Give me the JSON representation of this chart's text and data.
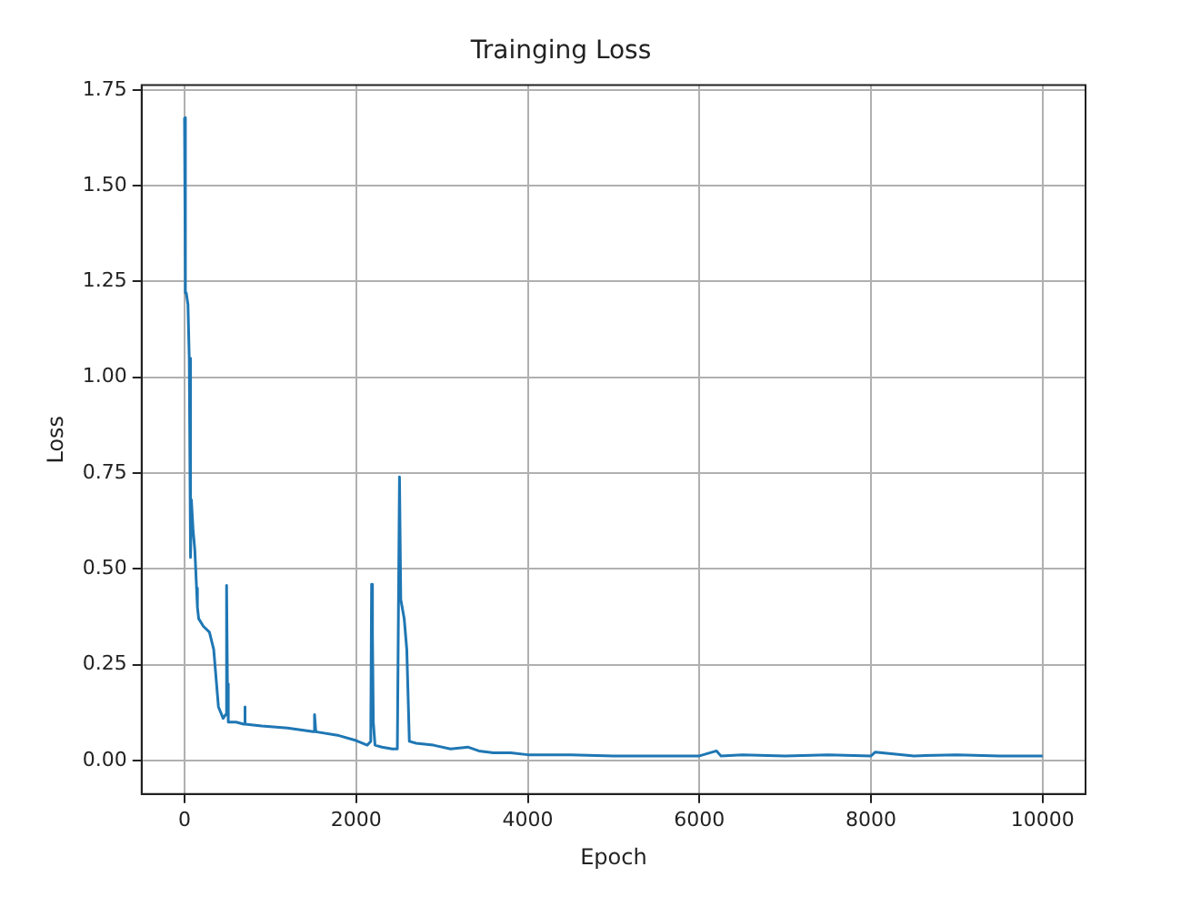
{
  "chart_data": {
    "type": "line",
    "title": "Trainging Loss",
    "xlabel": "Epoch",
    "ylabel": "Loss",
    "xlim": [
      -500,
      10500
    ],
    "xticks": [
      0,
      2000,
      4000,
      6000,
      8000,
      10000
    ],
    "ylim": [
      -0.0875,
      1.7625
    ],
    "yticks": [
      {
        "value": 0,
        "label": "0.00"
      },
      {
        "value": 0.25,
        "label": "0.25"
      },
      {
        "value": 0.5,
        "label": "0.50"
      },
      {
        "value": 0.75,
        "label": "0.75"
      },
      {
        "value": 1,
        "label": "1.00"
      },
      {
        "value": 1.25,
        "label": "1.25"
      },
      {
        "value": 1.5,
        "label": "1.50"
      },
      {
        "value": 1.75,
        "label": "1.75"
      }
    ],
    "grid": true,
    "legend": false,
    "marker": "none",
    "line_style": "solid",
    "series": [
      {
        "color": "#1f77b4",
        "x": [
          0,
          10,
          20,
          40,
          55,
          70,
          80,
          100,
          120,
          140,
          150,
          165,
          220,
          290,
          340,
          395,
          450,
          480,
          490,
          500,
          510,
          600,
          690,
          700,
          710,
          900,
          1200,
          1500,
          1515,
          1530,
          1800,
          2000,
          2130,
          2170,
          2180,
          2190,
          2200,
          2220,
          2300,
          2420,
          2480,
          2505,
          2520,
          2560,
          2590,
          2620,
          2700,
          2900,
          3100,
          3300,
          3430,
          3600,
          3800,
          4000,
          4500,
          5000,
          5500,
          6000,
          6200,
          6250,
          6500,
          7000,
          7500,
          8000,
          8050,
          8500,
          9000,
          9500,
          10000
        ],
        "values": [
          1.678,
          1.22,
          1.22,
          1.19,
          1.05,
          0.53,
          0.68,
          0.6,
          0.55,
          0.45,
          0.4,
          0.37,
          0.35,
          0.335,
          0.29,
          0.14,
          0.11,
          0.12,
          0.457,
          0.2,
          0.1,
          0.1,
          0.095,
          0.14,
          0.095,
          0.09,
          0.085,
          0.075,
          0.12,
          0.075,
          0.065,
          0.052,
          0.04,
          0.05,
          0.46,
          0.33,
          0.1,
          0.04,
          0.035,
          0.03,
          0.03,
          0.74,
          0.42,
          0.37,
          0.29,
          0.05,
          0.045,
          0.04,
          0.03,
          0.035,
          0.025,
          0.02,
          0.02,
          0.015,
          0.015,
          0.012,
          0.012,
          0.012,
          0.025,
          0.012,
          0.015,
          0.012,
          0.015,
          0.012,
          0.022,
          0.012,
          0.015,
          0.012,
          0.012
        ]
      }
    ]
  }
}
